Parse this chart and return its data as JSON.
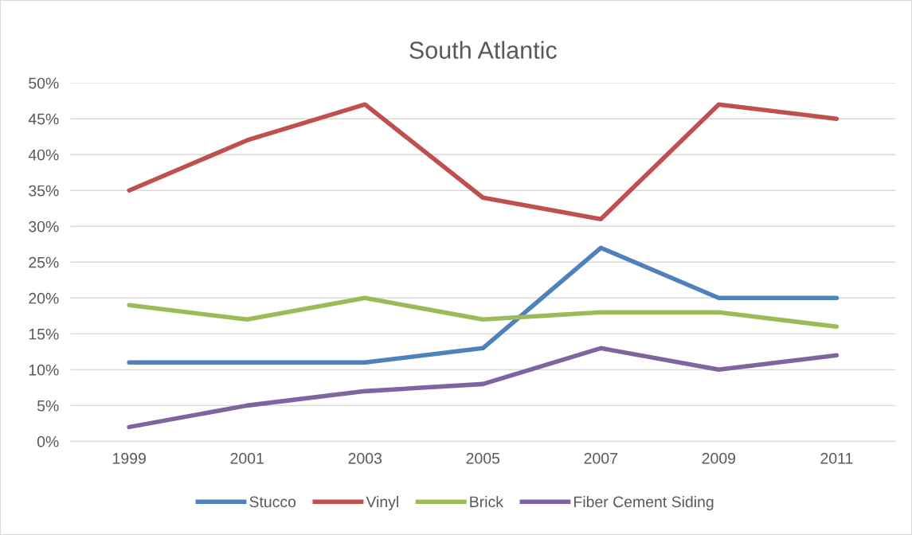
{
  "chart_data": {
    "type": "line",
    "title": "South Atlantic",
    "categories": [
      "1999",
      "2001",
      "2003",
      "2005",
      "2007",
      "2009",
      "2011"
    ],
    "series": [
      {
        "name": "Stucco",
        "color": "#4f81bd",
        "values": [
          11,
          11,
          11,
          13,
          27,
          20,
          20
        ]
      },
      {
        "name": "Vinyl",
        "color": "#c0504d",
        "values": [
          35,
          42,
          47,
          34,
          31,
          47,
          45
        ]
      },
      {
        "name": "Brick",
        "color": "#9bbb59",
        "values": [
          19,
          17,
          20,
          17,
          18,
          18,
          16
        ]
      },
      {
        "name": "Fiber Cement Siding",
        "color": "#8064a2",
        "values": [
          2,
          5,
          7,
          8,
          13,
          10,
          12
        ]
      }
    ],
    "ylim": [
      0,
      50
    ],
    "yticks": [
      {
        "value": 0,
        "label": "0%"
      },
      {
        "value": 5,
        "label": "5%"
      },
      {
        "value": 10,
        "label": "10%"
      },
      {
        "value": 15,
        "label": "15%"
      },
      {
        "value": 20,
        "label": "20%"
      },
      {
        "value": 25,
        "label": "25%"
      },
      {
        "value": 30,
        "label": "30%"
      },
      {
        "value": 35,
        "label": "35%"
      },
      {
        "value": 40,
        "label": "40%"
      },
      {
        "value": 45,
        "label": "45%"
      },
      {
        "value": 50,
        "label": "50%"
      }
    ],
    "grid": "y",
    "legend": "bottom",
    "marker": "none",
    "line_style": "solid"
  }
}
